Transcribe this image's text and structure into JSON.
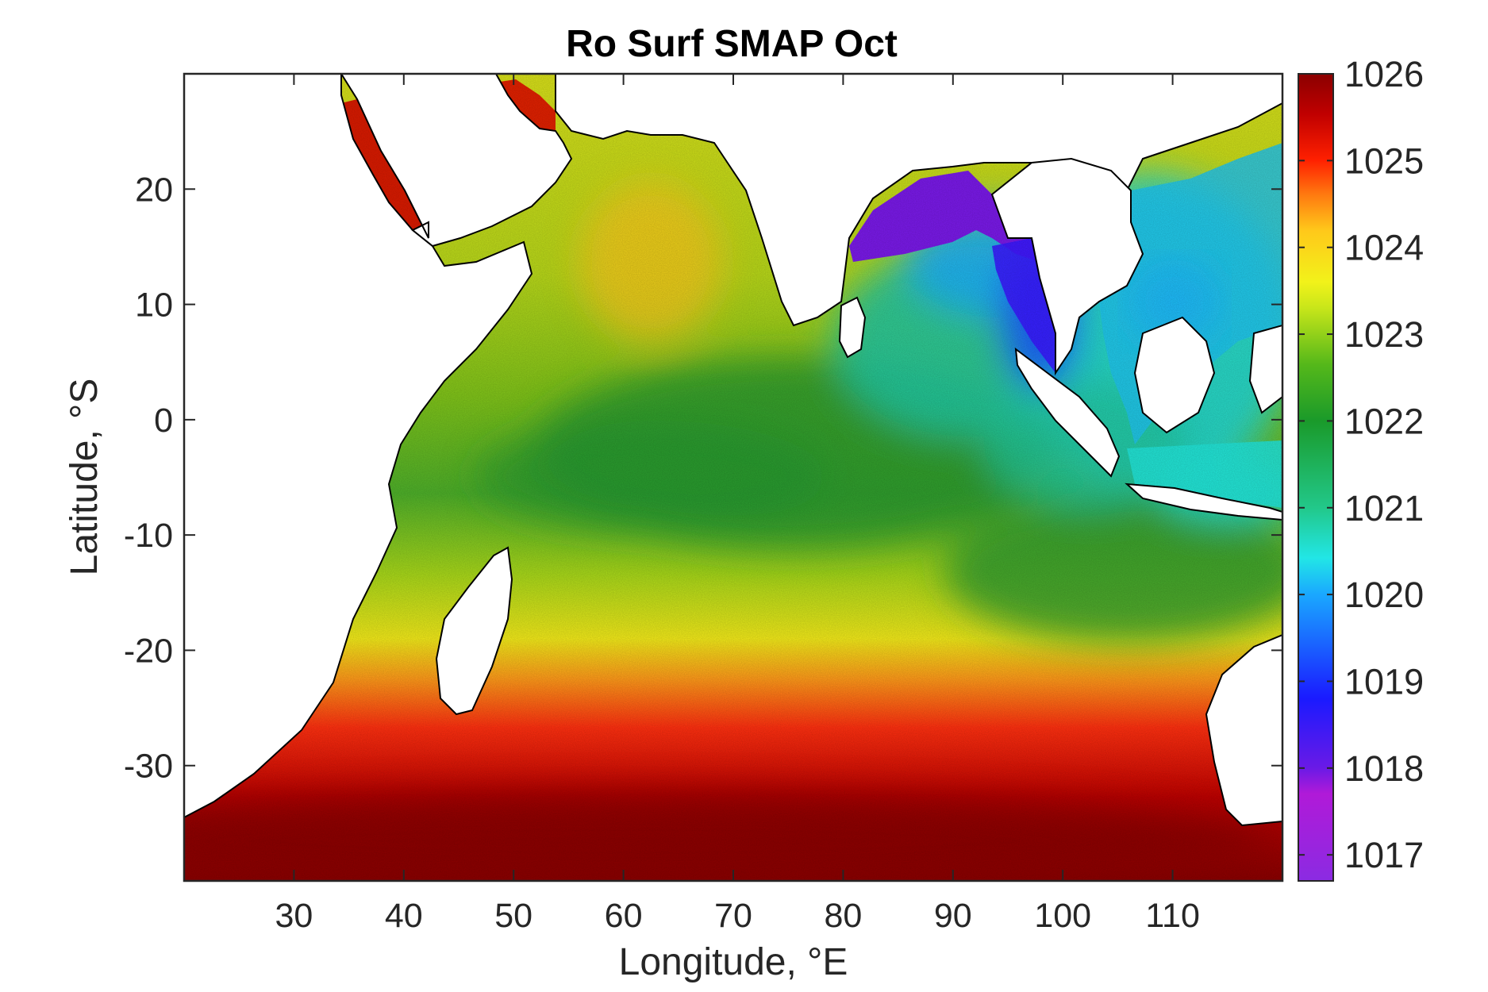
{
  "figure": {
    "title": "Ro Surf SMAP Oct",
    "xlabel": "Longitude, °E",
    "ylabel": "Latitude, °S"
  },
  "map": {
    "type": "heatmap",
    "lon_range": [
      20,
      120
    ],
    "lat_range": [
      -40,
      30
    ],
    "x_ticks": [
      30,
      40,
      50,
      60,
      70,
      80,
      90,
      100,
      110
    ],
    "y_ticks": [
      20,
      10,
      0,
      -10,
      -20,
      -30
    ],
    "x_tick_labels": [
      "30",
      "40",
      "50",
      "60",
      "70",
      "80",
      "90",
      "100",
      "110"
    ],
    "y_tick_labels": [
      "20",
      "10",
      "0",
      "-10",
      "-20",
      "-30"
    ],
    "land_color": "#ffffff",
    "coastline_color": "#000000"
  },
  "colorbar": {
    "min": 1016.7,
    "max": 1026.0,
    "ticks": [
      1026,
      1025,
      1024,
      1023,
      1022,
      1021,
      1020,
      1019,
      1018,
      1017
    ],
    "tick_labels": [
      "1026",
      "1025",
      "1024",
      "1023",
      "1022",
      "1021",
      "1020",
      "1019",
      "1018",
      "1017"
    ],
    "stops": [
      "#8b0000",
      "#cc0000",
      "#ff2000",
      "#ff8a1a",
      "#ffd21a",
      "#f2f21a",
      "#b8e01a",
      "#55b81a",
      "#1a9a2a",
      "#22c88a",
      "#22e6d8",
      "#1aaaff",
      "#1a50ff",
      "#1a1aff",
      "#5a1ae6",
      "#b01ad8",
      "#8b2be2"
    ]
  }
}
